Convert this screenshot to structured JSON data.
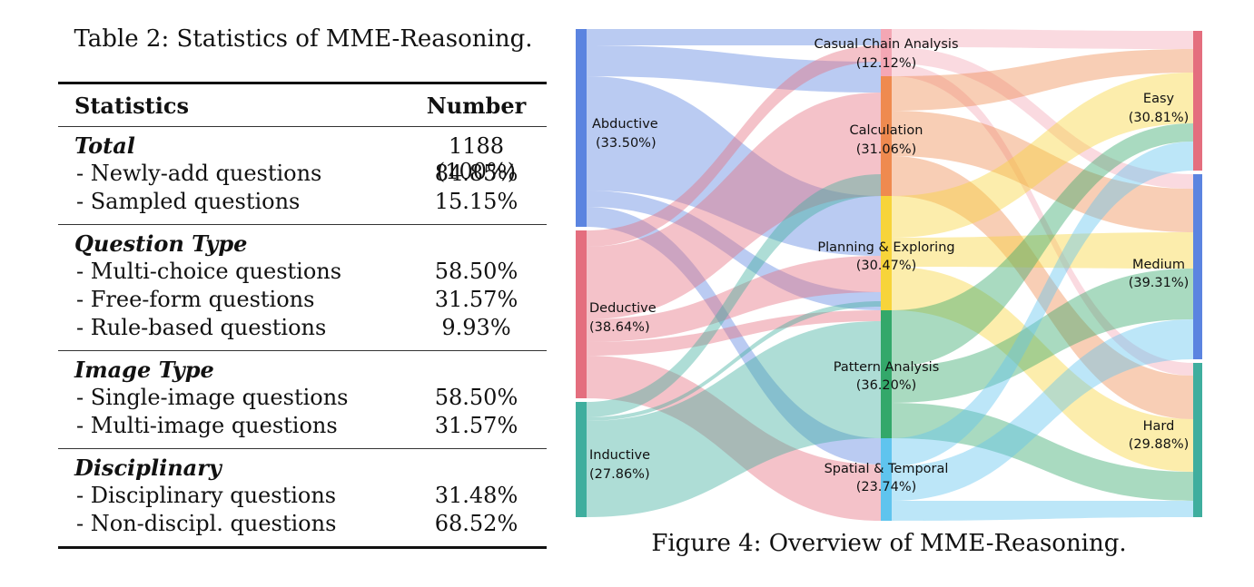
{
  "table": {
    "caption": "Table 2: Statistics of MME-Reasoning.",
    "header": {
      "col1": "Statistics",
      "col2": "Number"
    },
    "sections": [
      {
        "title": "Total",
        "value": "1188 (100%)",
        "rows": [
          {
            "label": "- Newly-add questions",
            "value": "84.85%"
          },
          {
            "label": "- Sampled questions",
            "value": "15.15%"
          }
        ]
      },
      {
        "title": "Question Type",
        "value": "",
        "rows": [
          {
            "label": "- Multi-choice questions",
            "value": "58.50%"
          },
          {
            "label": "- Free-form questions",
            "value": "31.57%"
          },
          {
            "label": "- Rule-based questions",
            "value": "9.93%"
          }
        ]
      },
      {
        "title": "Image Type",
        "value": "",
        "rows": [
          {
            "label": "- Single-image questions",
            "value": "58.50%"
          },
          {
            "label": "- Multi-image questions",
            "value": "31.57%"
          }
        ]
      },
      {
        "title": "Disciplinary",
        "value": "",
        "rows": [
          {
            "label": "- Disciplinary questions",
            "value": "31.48%"
          },
          {
            "label": "- Non-discipl. questions",
            "value": "68.52%"
          }
        ]
      }
    ]
  },
  "figure": {
    "caption": "Figure 4: Overview of MME-Reasoning.",
    "colors": {
      "abductive": "#5b84e0",
      "deductive": "#e46e7e",
      "inductive": "#3fae9e",
      "casual": "#f4a7b4",
      "calculation": "#ef8a4f",
      "planning": "#f7d43a",
      "pattern": "#33a86a",
      "spatial": "#5fc4ee",
      "easy": "#e46e7e",
      "medium": "#5b84e0",
      "hard": "#3fae9e"
    },
    "left_nodes": [
      {
        "name": "Abductive",
        "pct": "(33.50%)"
      },
      {
        "name": "Deductive",
        "pct": "(38.64%)"
      },
      {
        "name": "Inductive",
        "pct": "(27.86%)"
      }
    ],
    "middle_nodes": [
      {
        "name": "Casual Chain Analysis",
        "pct": "(12.12%)"
      },
      {
        "name": "Calculation",
        "pct": "(31.06%)"
      },
      {
        "name": "Planning & Exploring",
        "pct": "(30.47%)"
      },
      {
        "name": "Pattern Analysis",
        "pct": "(36.20%)"
      },
      {
        "name": "Spatial & Temporal",
        "pct": "(23.74%)"
      }
    ],
    "right_nodes": [
      {
        "name": "Easy",
        "pct": "(30.81%)"
      },
      {
        "name": "Medium",
        "pct": "(39.31%)"
      },
      {
        "name": "Hard",
        "pct": "(29.88%)"
      }
    ]
  }
}
